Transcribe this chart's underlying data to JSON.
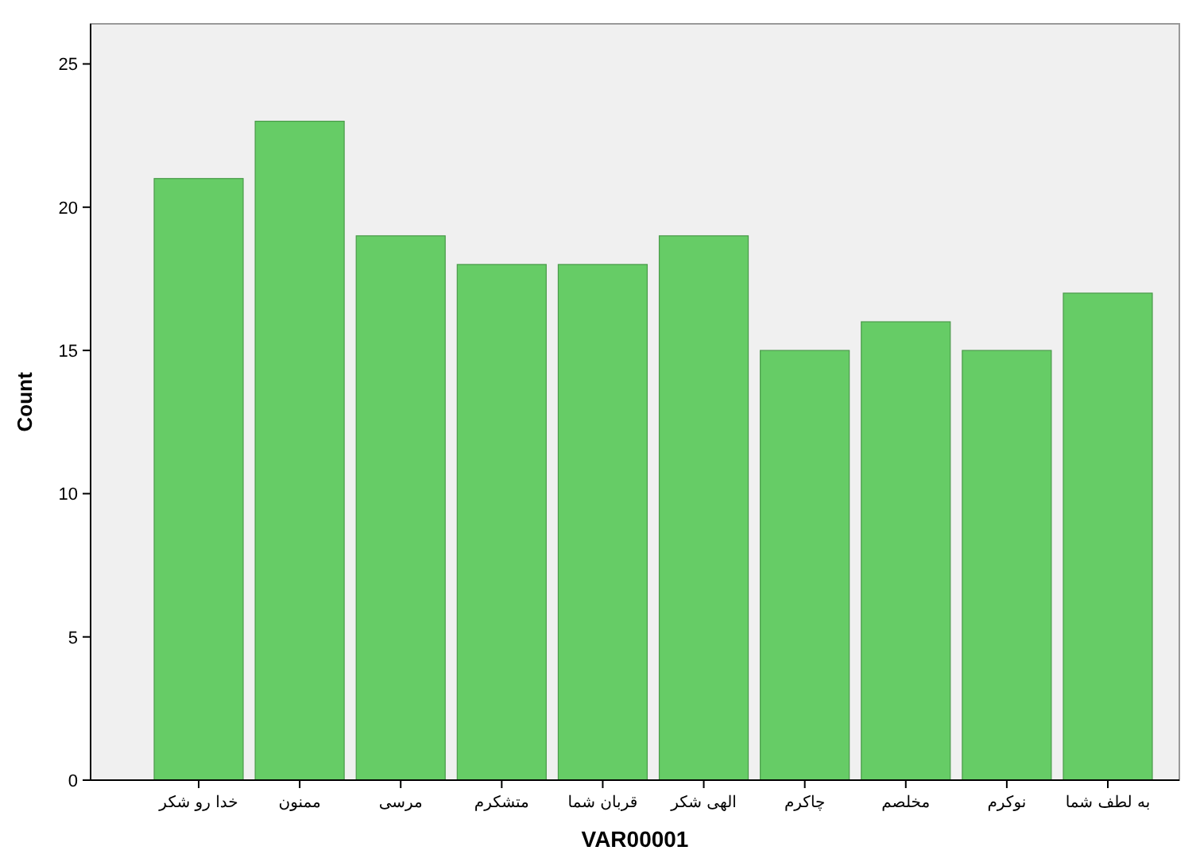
{
  "chart_data": {
    "type": "bar",
    "xlabel": "VAR00001",
    "ylabel": "Count",
    "categories": [
      "خدا رو شکر",
      "ممنون",
      "مرسی",
      "متشکرم",
      "قربان شما",
      "الهی شکر",
      "چاکرم",
      "مخلصم",
      "نوکرم",
      "به لطف شما"
    ],
    "values": [
      21,
      23,
      19,
      18,
      18,
      19,
      15,
      16,
      15,
      17
    ],
    "color": "#66cc66",
    "ylim": [
      0,
      26.4
    ],
    "yticks": [
      0,
      5,
      10,
      15,
      20,
      25
    ]
  }
}
